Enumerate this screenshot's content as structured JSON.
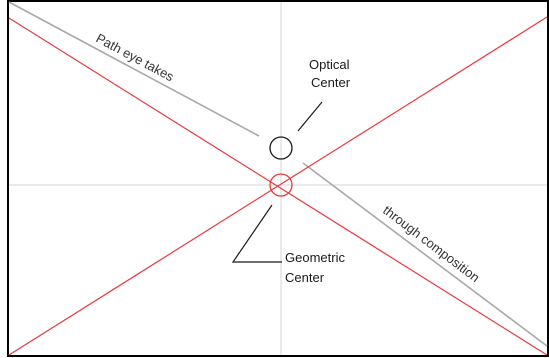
{
  "labels": {
    "path_upper": "Path eye takes",
    "path_lower": "through composition",
    "optical_line1": "Optical",
    "optical_line2": "Center",
    "geometric_line1": "Geometric",
    "geometric_line2": "Center"
  },
  "colors": {
    "frame": "#000000",
    "diagonals": "#e8393e",
    "center_guides": "#d6d6d6",
    "eye_path": "#a8a8a8",
    "optical_marker": "#1a1a1a",
    "leader_lines": "#1a1a1a"
  }
}
